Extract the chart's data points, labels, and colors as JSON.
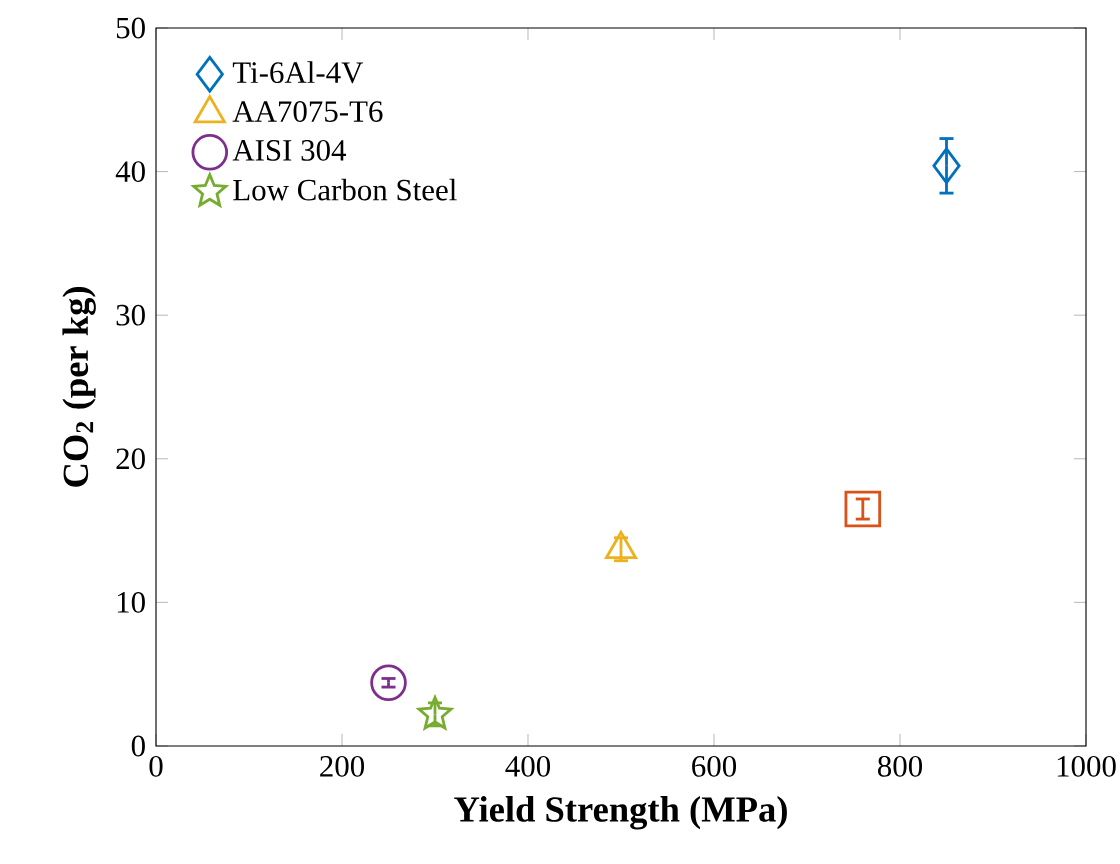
{
  "chart_data": {
    "type": "scatter",
    "xlabel": "Yield Strength (MPa)",
    "ylabel": "CO$_{2}$ (per kg)",
    "xlim": [
      0,
      1000
    ],
    "ylim": [
      0,
      50
    ],
    "xticks": [
      0,
      200,
      400,
      600,
      800,
      1000
    ],
    "yticks": [
      0,
      10,
      20,
      30,
      40,
      50
    ],
    "legend": "top left",
    "grid": false,
    "series": [
      {
        "name": "Ti-6Al-4V",
        "color": "#0072bd",
        "marker": "diamond",
        "x": [
          850
        ],
        "values": [
          40.4
        ],
        "errors": [
          1.9
        ]
      },
      {
        "color": "#d95319",
        "marker": "square",
        "x": [
          760
        ],
        "values": [
          16.5
        ],
        "errors": [
          0.7
        ]
      },
      {
        "name": "AA7075-T6",
        "color": "#edb120",
        "marker": "triangle",
        "x": [
          500
        ],
        "values": [
          13.7
        ],
        "errors": [
          0.8
        ]
      },
      {
        "name": "AISI 304",
        "color": "#7e2f8e",
        "marker": "circle",
        "x": [
          250
        ],
        "values": [
          4.4
        ],
        "errors": [
          0.3
        ]
      },
      {
        "name": "Low Carbon Steel",
        "color": "#77ac30",
        "marker": "star",
        "x": [
          300
        ],
        "values": [
          2.2
        ],
        "errors": [
          0.8
        ]
      }
    ]
  }
}
